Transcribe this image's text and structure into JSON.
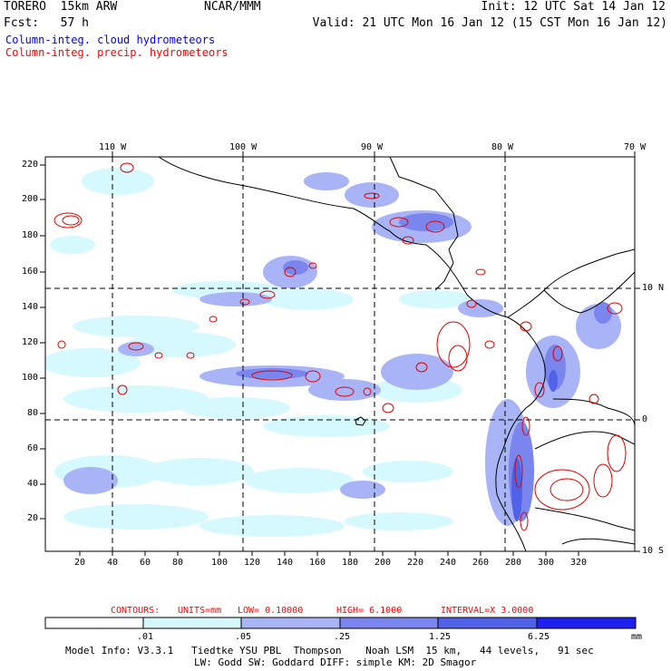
{
  "header": {
    "model": "TORERO  15km ARW",
    "org": "NCAR/MMM",
    "init": "Init: 12 UTC Sat 14 Jan 12",
    "fcst": "Fcst:   57 h",
    "valid": "Valid: 21 UTC Mon 16 Jan 12 (15 CST Mon 16 Jan 12)",
    "legend_cloud": "Column-integ. cloud hydrometeors",
    "legend_precip": "Column-integ. precip. hydrometeors"
  },
  "map": {
    "top_lon_labels": [
      "110 W",
      "100 W",
      "90 W",
      "80 W",
      "70 W"
    ],
    "right_lat_labels": [
      "10 N",
      "0",
      "10 S"
    ],
    "y_ticks": [
      "220",
      "200",
      "180",
      "160",
      "140",
      "120",
      "100",
      "80",
      "60",
      "40",
      "20"
    ],
    "x_ticks": [
      "20",
      "40",
      "60",
      "80",
      "100",
      "120",
      "140",
      "160",
      "180",
      "200",
      "220",
      "240",
      "260",
      "280",
      "300",
      "320"
    ],
    "colors": {
      "light": "#d6f8ff",
      "mid": "#a9b4f6",
      "blue": "#7a86ee",
      "strong": "#5262e8",
      "contour": "#e00000"
    }
  },
  "contours_line": {
    "label": "CONTOURS:",
    "units": "UNITS=mm",
    "low": "LOW= 0.10000",
    "high": "HIGH= 6.1000",
    "interval": "INTERVAL=X 3.0000"
  },
  "colorbar": {
    "labels": [
      ".01",
      ".05",
      ".25",
      "1.25",
      "6.25"
    ],
    "unit": "mm",
    "colors": [
      "#ffffff",
      "#d6f8ff",
      "#a9b4f6",
      "#7a86ee",
      "#5262e8",
      "#1e20f0"
    ]
  },
  "footer": {
    "line1": "Model Info: V3.3.1   Tiedtke YSU PBL  Thompson    Noah LSM  15 km,   44 levels,   91 sec",
    "line2": "LW: Godd SW: Goddard DIFF: simple KM: 2D Smagor"
  }
}
